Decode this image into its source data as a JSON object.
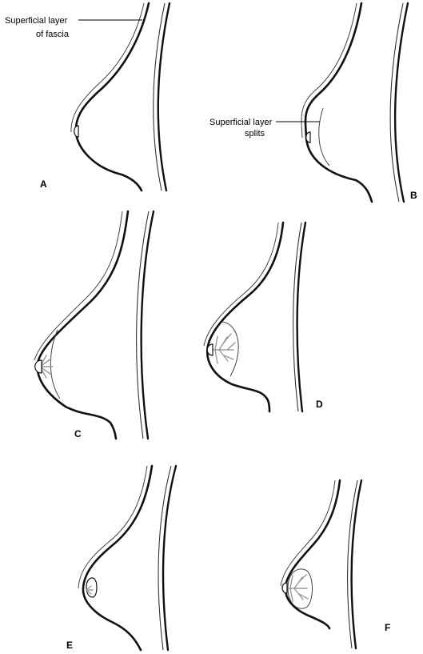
{
  "figure": {
    "annotations": {
      "superficial_layer": "Superficial layer",
      "of_fascia": "of fascia",
      "superficial_layer_2": "Superficial layer",
      "splits": "splits"
    },
    "panels": [
      {
        "letter": "A"
      },
      {
        "letter": "B"
      },
      {
        "letter": "C"
      },
      {
        "letter": "D"
      },
      {
        "letter": "E"
      },
      {
        "letter": "F"
      }
    ]
  }
}
